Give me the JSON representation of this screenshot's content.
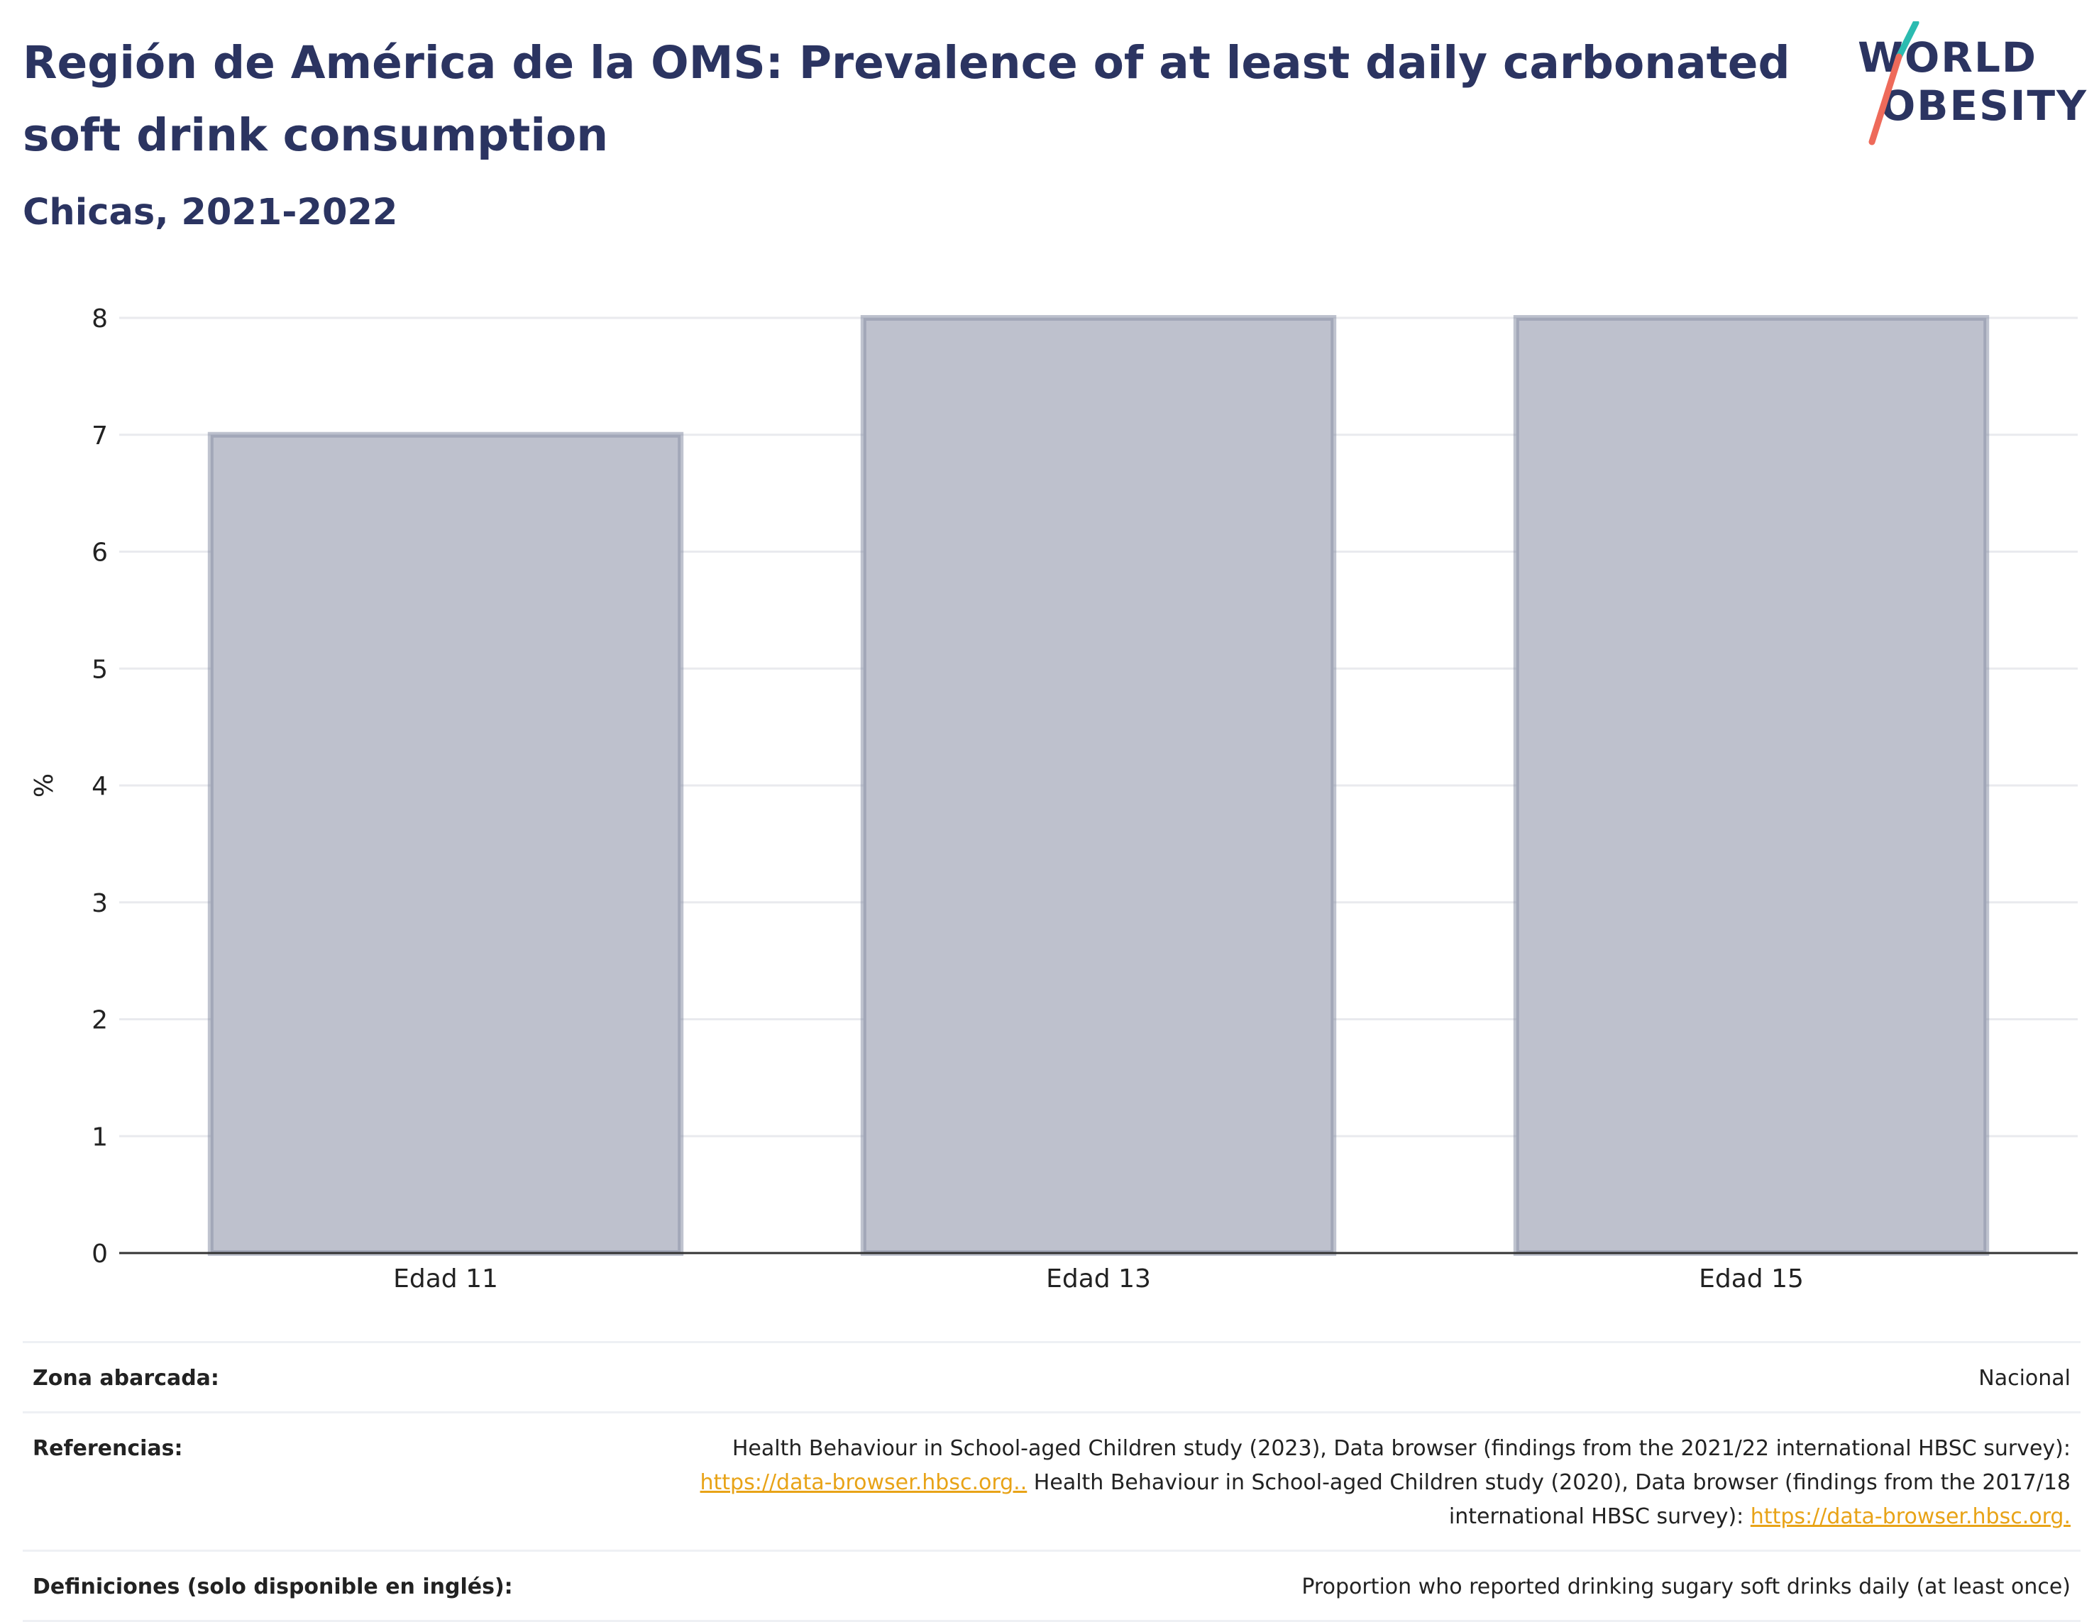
{
  "header": {
    "title": "Región de América de la OMS: Prevalence of at least daily carbonated soft drink consumption",
    "subtitle": "Chicas, 2021-2022"
  },
  "logo": {
    "line1": "WORLD",
    "line2": "OBESITY"
  },
  "colors": {
    "title": "#2b3461",
    "bar_fill": "#bec1cd",
    "bar_stroke": "#8b91a8",
    "logo_teal": "#2bbbb0",
    "logo_coral": "#ee6a5a",
    "link": "#e8a317"
  },
  "chart_data": {
    "type": "bar",
    "categories": [
      "Edad 11",
      "Edad 13",
      "Edad 15"
    ],
    "values": [
      7,
      8,
      8
    ],
    "ylabel": "%",
    "xlabel": "",
    "ylim": [
      0,
      8
    ],
    "yticks": [
      0,
      1,
      2,
      3,
      4,
      5,
      6,
      7,
      8
    ],
    "grid": true
  },
  "info": {
    "zona_label": "Zona abarcada:",
    "zona_value": "Nacional",
    "ref_label": "Referencias:",
    "ref_text1": "Health Behaviour in School-aged Children study (2023), Data browser (findings from the 2021/22 international HBSC survey):",
    "ref_link1": "https://data-browser.hbsc.org..",
    "ref_text2": " Health Behaviour in School-aged Children study (2020), Data browser (findings from the 2017/18 international HBSC survey): ",
    "ref_link2": "https://data-browser.hbsc.org.",
    "def_label": "Definiciones (solo disponible en inglés):",
    "def_value": "Proportion who reported drinking sugary soft drinks daily (at least once)"
  }
}
